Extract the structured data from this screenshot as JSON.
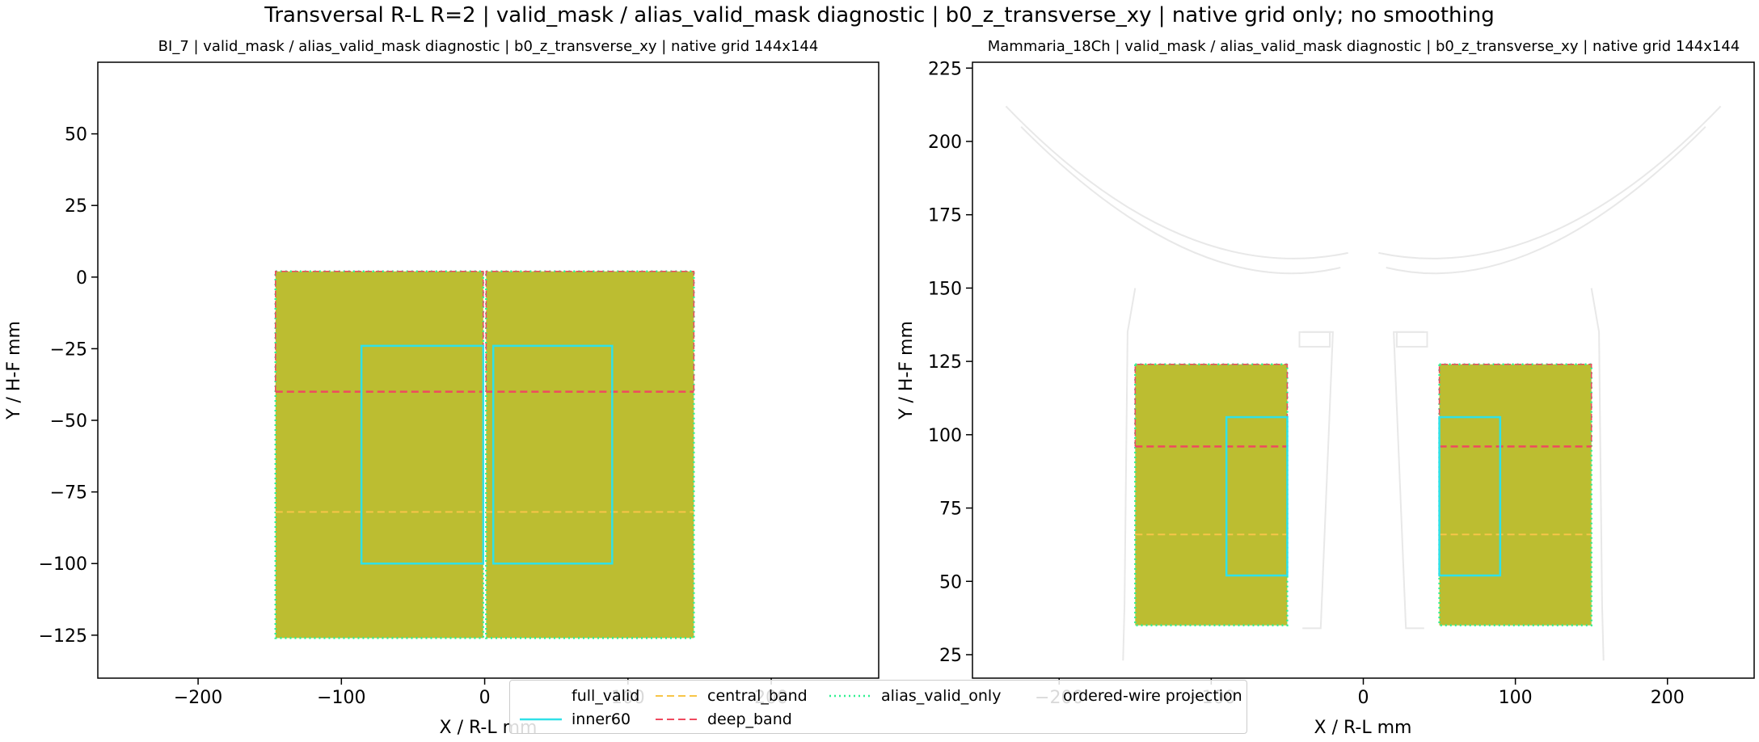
{
  "suptitle": "Transversal R-L R=2 | valid_mask / alias_valid_mask diagnostic | b0_z_transverse_xy | native grid only; no smoothing",
  "colors": {
    "fill": "#bcbd31",
    "inner60": "#30e0e8",
    "central_band": "#f7c548",
    "deep_band": "#ef4a5f",
    "alias_valid_only": "#2ef090",
    "ordered_wire": "#e8e8e8"
  },
  "legend": {
    "items": [
      {
        "key": "full_valid",
        "label": "full_valid",
        "style": "none"
      },
      {
        "key": "inner60",
        "label": "inner60",
        "style": "solid"
      },
      {
        "key": "central_band",
        "label": "central_band",
        "style": "dashed"
      },
      {
        "key": "deep_band",
        "label": "deep_band",
        "style": "dashed"
      },
      {
        "key": "alias_valid_only",
        "label": "alias_valid_only",
        "style": "dotted"
      },
      {
        "key": "ordered_wire",
        "label": "ordered-wire projection",
        "style": "none"
      }
    ]
  },
  "chart_data": [
    {
      "type": "region-map",
      "title": "BI_7 | valid_mask / alias_valid_mask diagnostic | b0_z_transverse_xy | native grid 144x144",
      "xlabel": "X / R-L mm",
      "ylabel": "Y / H-F mm",
      "xlim": [
        -270,
        275
      ],
      "ylim": [
        -140,
        75
      ],
      "xticks": [
        -200,
        -100,
        0,
        100,
        200
      ],
      "xtick_labels": [
        "−200",
        "−100",
        "0",
        "100",
        "200"
      ],
      "yticks": [
        50,
        25,
        0,
        -25,
        -50,
        -75,
        -100,
        -125
      ],
      "ytick_labels": [
        "50",
        "25",
        "0",
        "−25",
        "−50",
        "−75",
        "−100",
        "−125"
      ],
      "full_valid": [
        [
          -146,
          -126,
          -1,
          2
        ],
        [
          1,
          -126,
          146,
          2
        ]
      ],
      "alias_valid_only": [
        [
          -146,
          -126,
          -1,
          2
        ],
        [
          1,
          -126,
          146,
          2
        ]
      ],
      "inner60": [
        [
          -86,
          -100,
          -1,
          -24
        ],
        [
          6,
          -100,
          89,
          -24
        ]
      ],
      "central_band_y": -82,
      "deep_band_y": -40,
      "band_x_ranges": [
        [
          -146,
          -1
        ],
        [
          1,
          146
        ]
      ]
    },
    {
      "type": "region-map",
      "title": "Mammaria_18Ch | valid_mask / alias_valid_mask diagnostic | b0_z_transverse_xy | native grid 144x144",
      "xlabel": "X / R-L mm",
      "ylabel": "Y / H-F mm",
      "xlim": [
        -257,
        257
      ],
      "ylim": [
        17,
        227
      ],
      "xticks": [
        -200,
        -100,
        0,
        100,
        200
      ],
      "xtick_labels": [
        "−200",
        "−100",
        "0",
        "100",
        "200"
      ],
      "yticks": [
        225,
        200,
        175,
        150,
        125,
        100,
        75,
        50,
        25
      ],
      "ytick_labels": [
        "225",
        "200",
        "175",
        "150",
        "125",
        "100",
        "75",
        "50",
        "25"
      ],
      "full_valid": [
        [
          -150,
          35,
          -50,
          124
        ],
        [
          50,
          35,
          150,
          124
        ]
      ],
      "alias_valid_only": [
        [
          -150,
          35,
          -50,
          124
        ],
        [
          50,
          35,
          150,
          124
        ]
      ],
      "inner60": [
        [
          -90,
          52,
          -50,
          106
        ],
        [
          50,
          52,
          90,
          106
        ]
      ],
      "central_band_y": 66,
      "deep_band_y": 96,
      "band_x_ranges": [
        [
          -150,
          -50
        ],
        [
          50,
          150
        ]
      ]
    }
  ]
}
